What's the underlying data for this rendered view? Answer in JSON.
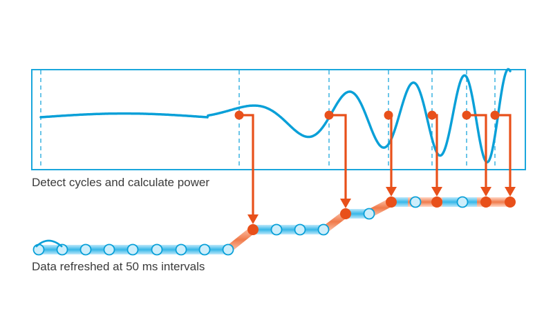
{
  "captions": {
    "top": "Detect cycles and calculate power",
    "bottom": "Data refreshed at 50 ms intervals"
  },
  "colors": {
    "wave": "#0aa0d8",
    "frame": "#19a6dc",
    "arrow": "#e8501a",
    "node_fill": "#cdeefb",
    "node_stroke": "#0aa0d8"
  },
  "icons": {
    "arrow": "down-arrow-icon",
    "node": "sample-node-icon"
  }
}
